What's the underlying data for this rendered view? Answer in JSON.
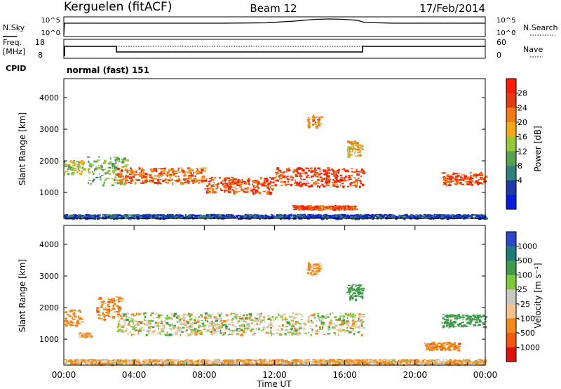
{
  "header": {
    "station": "Kerguelen (fitACF)",
    "beam": "Beam 12",
    "date": "17/Feb/2014"
  },
  "noise_panel": {
    "left_label": "N.Sky",
    "left_ticks": [
      "10^5",
      "10^0"
    ],
    "right_ticks": [
      "10^5",
      "10^0"
    ],
    "right_label": "N.Search"
  },
  "freq_panel": {
    "left_label_line1": "Freq.",
    "left_label_line2": "[MHz]",
    "left_ticks": [
      "18",
      "8"
    ],
    "right_ticks": [
      "60",
      "0"
    ],
    "right_label": "Nave",
    "cpid_label": "CPID",
    "cpid_value": "normal (fast) 151"
  },
  "chart_data": [
    {
      "type": "heatmap",
      "title": "",
      "xlabel": "",
      "ylabel": "Slant Range [km]",
      "xlim": [
        0,
        24
      ],
      "ylim": [
        180,
        4600
      ],
      "y_ticks": [
        1000,
        2000,
        3000,
        4000
      ],
      "colorbar_label": "Power [dB]",
      "colorbar_ticks": [
        4,
        8,
        12,
        16,
        20,
        24,
        28
      ],
      "colorbar_colors": [
        "#0b1bde",
        "#1f3aa8",
        "#2f7f7a",
        "#5aa052",
        "#95c93a",
        "#f3a81b",
        "#f07a16",
        "#e03a16",
        "#ff1d00"
      ],
      "features": [
        {
          "t0": 0.0,
          "t1": 1.1,
          "r_mid": 1800,
          "r_width": 450,
          "power": 16
        },
        {
          "t0": 1.3,
          "t1": 3.6,
          "r_mid": 1700,
          "r_width": 900,
          "power": 14
        },
        {
          "t0": 3.0,
          "t1": 8.0,
          "r_mid": 1550,
          "r_width": 500,
          "power": 24
        },
        {
          "t0": 8.0,
          "t1": 12.0,
          "r_mid": 1250,
          "r_width": 500,
          "power": 26
        },
        {
          "t0": 12.0,
          "t1": 17.0,
          "r_mid": 1500,
          "r_width": 600,
          "power": 27
        },
        {
          "t0": 13.8,
          "t1": 14.6,
          "r_mid": 3250,
          "r_width": 400,
          "power": 22
        },
        {
          "t0": 16.1,
          "t1": 17.0,
          "r_mid": 2400,
          "r_width": 500,
          "power": 20
        },
        {
          "t0": 13.0,
          "t1": 16.6,
          "r_mid": 540,
          "r_width": 120,
          "power": 26
        },
        {
          "t0": 21.5,
          "t1": 24.0,
          "r_mid": 1450,
          "r_width": 400,
          "power": 26
        },
        {
          "t0": 0.0,
          "t1": 24.0,
          "r_mid": 260,
          "r_width": 120,
          "power": 6
        }
      ]
    },
    {
      "type": "heatmap",
      "title": "",
      "xlabel": "Time UT",
      "ylabel": "Slant Range [km]",
      "xlim": [
        0,
        24
      ],
      "ylim": [
        180,
        4600
      ],
      "x_ticks": [
        "00:00",
        "04:00",
        "08:00",
        "12:00",
        "16:00",
        "20:00",
        "00:00"
      ],
      "y_ticks": [
        1000,
        2000,
        3000,
        4000
      ],
      "colorbar_label": "Velocity [m s⁻¹]",
      "colorbar_ticks": [
        1000,
        500,
        100,
        25,
        -25,
        -100,
        -500,
        -1000
      ],
      "colorbar_colors": [
        "#2b48c8",
        "#1f7a7a",
        "#3f9a4a",
        "#7ec83a",
        "#c8c8c0",
        "#f6c28a",
        "#f08a1c",
        "#f05a10",
        "#e01010"
      ],
      "features": [
        {
          "t0": 0.0,
          "t1": 1.0,
          "r_mid": 1700,
          "r_width": 500,
          "velocity": -300
        },
        {
          "t0": 0.8,
          "t1": 1.5,
          "r_mid": 1150,
          "r_width": 150,
          "velocity": -150
        },
        {
          "t0": 1.8,
          "t1": 3.3,
          "r_mid": 2000,
          "r_width": 700,
          "velocity": -400
        },
        {
          "t0": 3.0,
          "t1": 17.0,
          "r_mid": 1500,
          "r_width": 700,
          "velocity": 0
        },
        {
          "t0": 13.8,
          "t1": 14.6,
          "r_mid": 3250,
          "r_width": 400,
          "velocity": -150
        },
        {
          "t0": 16.0,
          "t1": 17.0,
          "r_mid": 2500,
          "r_width": 500,
          "velocity": 300
        },
        {
          "t0": 21.5,
          "t1": 24.0,
          "r_mid": 1600,
          "r_width": 400,
          "velocity": 300
        },
        {
          "t0": 20.5,
          "t1": 22.5,
          "r_mid": 800,
          "r_width": 250,
          "velocity": -400
        },
        {
          "t0": 0.0,
          "t1": 24.0,
          "r_mid": 300,
          "r_width": 160,
          "velocity": -100
        }
      ]
    }
  ]
}
